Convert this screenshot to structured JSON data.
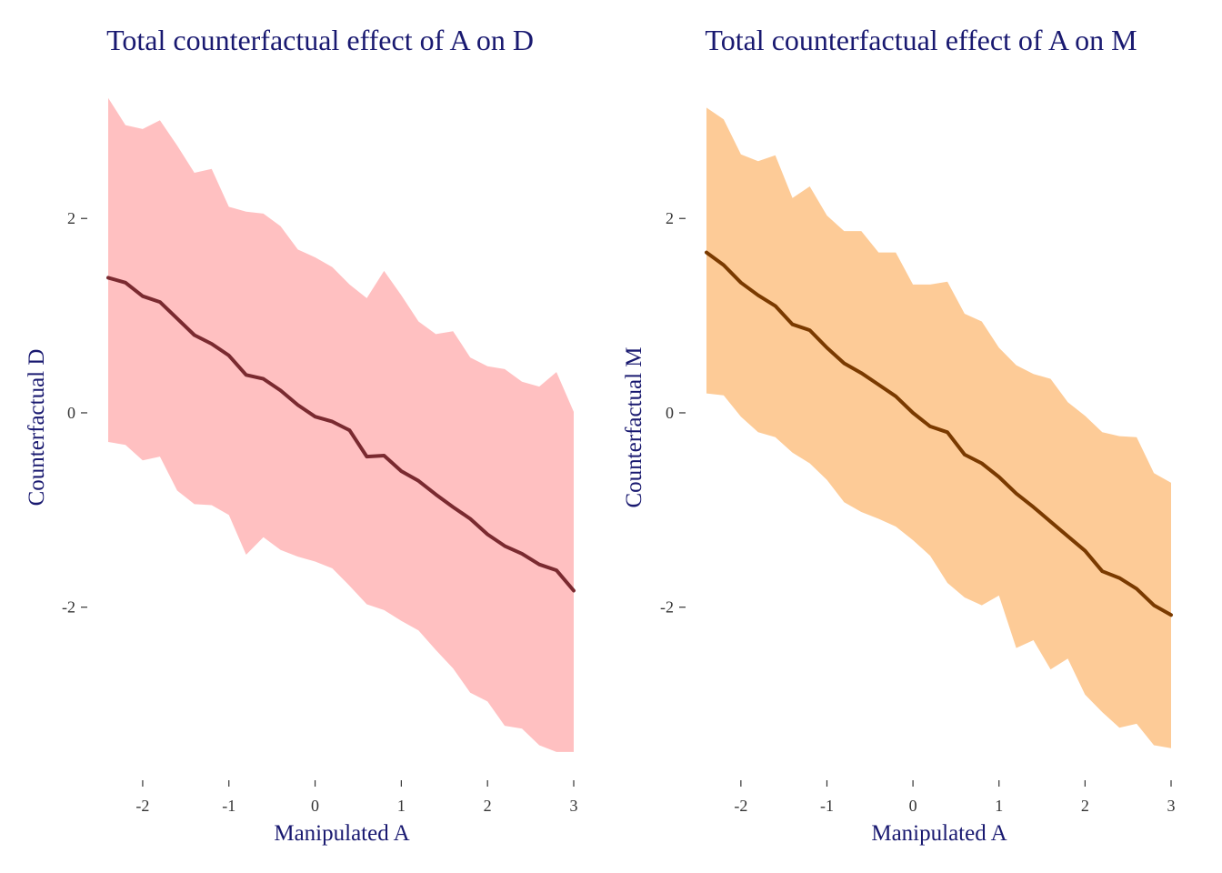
{
  "chart_data": [
    {
      "type": "area",
      "title": "Total counterfactual effect of A on D",
      "xlabel": "Manipulated A",
      "ylabel": "Counterfactual D",
      "xlim": [
        -2.4,
        3.0
      ],
      "ylim": [
        -3.5,
        3.2
      ],
      "xticks": [
        -2,
        -1,
        0,
        1,
        2,
        3
      ],
      "yticks": [
        -2,
        0,
        2
      ],
      "grid": false,
      "colors": {
        "band": "#FFC0C1",
        "line": "#7A2A30"
      },
      "x": [
        -2.4,
        -2.2,
        -2.0,
        -1.8,
        -1.6,
        -1.4,
        -1.2,
        -1.0,
        -0.8,
        -0.6,
        -0.4,
        -0.2,
        0.0,
        0.2,
        0.4,
        0.6,
        0.8,
        1.0,
        1.2,
        1.4,
        1.6,
        1.8,
        2.0,
        2.2,
        2.4,
        2.6,
        2.8,
        3.0
      ],
      "series": [
        {
          "role": "mean",
          "values": [
            1.39,
            1.34,
            1.2,
            1.14,
            0.97,
            0.8,
            0.71,
            0.59,
            0.39,
            0.35,
            0.23,
            0.08,
            -0.04,
            -0.09,
            -0.18,
            -0.45,
            -0.44,
            -0.6,
            -0.7,
            -0.84,
            -0.97,
            -1.09,
            -1.25,
            -1.37,
            -1.45,
            -1.56,
            -1.62,
            -1.83
          ]
        },
        {
          "role": "lower",
          "values": [
            -0.3,
            -0.33,
            -0.49,
            -0.45,
            -0.8,
            -0.94,
            -0.95,
            -1.05,
            -1.46,
            -1.28,
            -1.41,
            -1.48,
            -1.53,
            -1.6,
            -1.78,
            -1.97,
            -2.03,
            -2.14,
            -2.24,
            -2.44,
            -2.63,
            -2.88,
            -2.97,
            -3.22,
            -3.25,
            -3.42,
            -3.49,
            -3.49
          ]
        },
        {
          "role": "upper",
          "values": [
            3.24,
            2.96,
            2.92,
            3.01,
            2.75,
            2.47,
            2.51,
            2.12,
            2.07,
            2.05,
            1.92,
            1.68,
            1.6,
            1.5,
            1.32,
            1.18,
            1.46,
            1.21,
            0.94,
            0.81,
            0.84,
            0.57,
            0.48,
            0.45,
            0.32,
            0.27,
            0.42,
            0.01
          ]
        }
      ]
    },
    {
      "type": "area",
      "title": "Total counterfactual effect of A on M",
      "xlabel": "Manipulated A",
      "ylabel": "Counterfactual M",
      "xlim": [
        -2.4,
        3.0
      ],
      "ylim": [
        -3.5,
        3.2
      ],
      "xticks": [
        -2,
        -1,
        0,
        1,
        2,
        3
      ],
      "yticks": [
        -2,
        0,
        2
      ],
      "grid": false,
      "colors": {
        "band": "#FDCB97",
        "line": "#7A3A00"
      },
      "x": [
        -2.4,
        -2.2,
        -2.0,
        -1.8,
        -1.6,
        -1.4,
        -1.2,
        -1.0,
        -0.8,
        -0.6,
        -0.4,
        -0.2,
        0.0,
        0.2,
        0.4,
        0.6,
        0.8,
        1.0,
        1.2,
        1.4,
        1.6,
        1.8,
        2.0,
        2.2,
        2.4,
        2.6,
        2.8,
        3.0
      ],
      "series": [
        {
          "role": "mean",
          "values": [
            1.65,
            1.52,
            1.34,
            1.21,
            1.1,
            0.91,
            0.85,
            0.67,
            0.51,
            0.41,
            0.29,
            0.17,
            0.0,
            -0.14,
            -0.2,
            -0.43,
            -0.52,
            -0.66,
            -0.83,
            -0.97,
            -1.12,
            -1.27,
            -1.42,
            -1.63,
            -1.7,
            -1.81,
            -1.98,
            -2.08
          ]
        },
        {
          "role": "lower",
          "values": [
            0.2,
            0.18,
            -0.04,
            -0.2,
            -0.25,
            -0.41,
            -0.52,
            -0.69,
            -0.92,
            -1.02,
            -1.09,
            -1.17,
            -1.31,
            -1.47,
            -1.75,
            -1.9,
            -1.98,
            -1.88,
            -2.42,
            -2.34,
            -2.64,
            -2.53,
            -2.9,
            -3.08,
            -3.24,
            -3.2,
            -3.42,
            -3.45
          ]
        },
        {
          "role": "upper",
          "values": [
            3.14,
            3.02,
            2.66,
            2.59,
            2.65,
            2.21,
            2.33,
            2.03,
            1.87,
            1.87,
            1.65,
            1.65,
            1.32,
            1.32,
            1.35,
            1.02,
            0.94,
            0.67,
            0.49,
            0.4,
            0.35,
            0.11,
            -0.03,
            -0.2,
            -0.24,
            -0.25,
            -0.62,
            -0.72
          ]
        }
      ]
    }
  ]
}
